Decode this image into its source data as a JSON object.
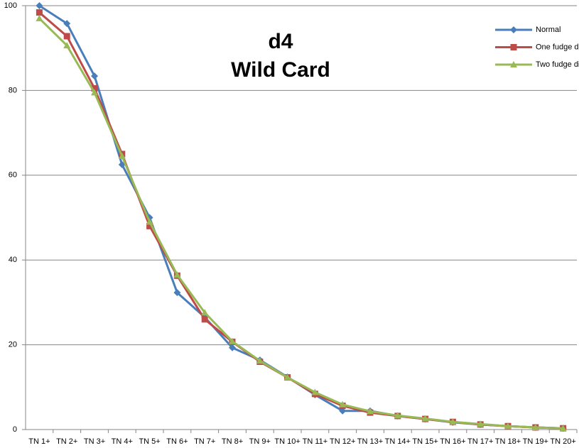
{
  "chart_data": {
    "type": "line",
    "title": [
      "d4",
      "Wild Card"
    ],
    "categories": [
      "TN 1+",
      "TN 2+",
      "TN 3+",
      "TN 4+",
      "TN 5+",
      "TN 6+",
      "TN 7+",
      "TN 8+",
      "TN 9+",
      "TN 10+",
      "TN 11+",
      "TN 12+",
      "TN 13+",
      "TN 14+",
      "TN 15+",
      "TN 16+",
      "TN 17+",
      "TN 18+",
      "TN 19+",
      "TN 20+"
    ],
    "series": [
      {
        "name": "Normal",
        "color": "#4a7ebb",
        "marker": "diamond",
        "values": [
          100,
          95.8,
          83.4,
          62.5,
          50,
          32.3,
          26.5,
          19.3,
          16.4,
          12.4,
          8.2,
          4.4,
          4.4,
          3.2,
          2.5,
          1.7,
          1.2,
          0.8,
          0.5,
          0.3
        ]
      },
      {
        "name": "One fudge die",
        "color": "#be4b48",
        "marker": "square",
        "values": [
          98.4,
          92.8,
          80.5,
          65,
          48,
          36.3,
          26,
          20.7,
          16,
          12.3,
          8.4,
          5.6,
          4,
          3.2,
          2.5,
          1.8,
          1.2,
          0.8,
          0.5,
          0.3
        ]
      },
      {
        "name": "Two fudge dice",
        "color": "#98b954",
        "marker": "triangle",
        "values": [
          97,
          90.6,
          79.5,
          64.5,
          49,
          36.5,
          27.6,
          20.8,
          16.2,
          12.3,
          8.8,
          5.9,
          4.3,
          3.3,
          2.6,
          1.8,
          1.3,
          0.8,
          0.5,
          0.3
        ]
      }
    ],
    "ylim": [
      0,
      100
    ],
    "yticks": [
      0,
      20,
      40,
      60,
      80,
      100
    ],
    "grid": true,
    "legend": "top-right"
  }
}
